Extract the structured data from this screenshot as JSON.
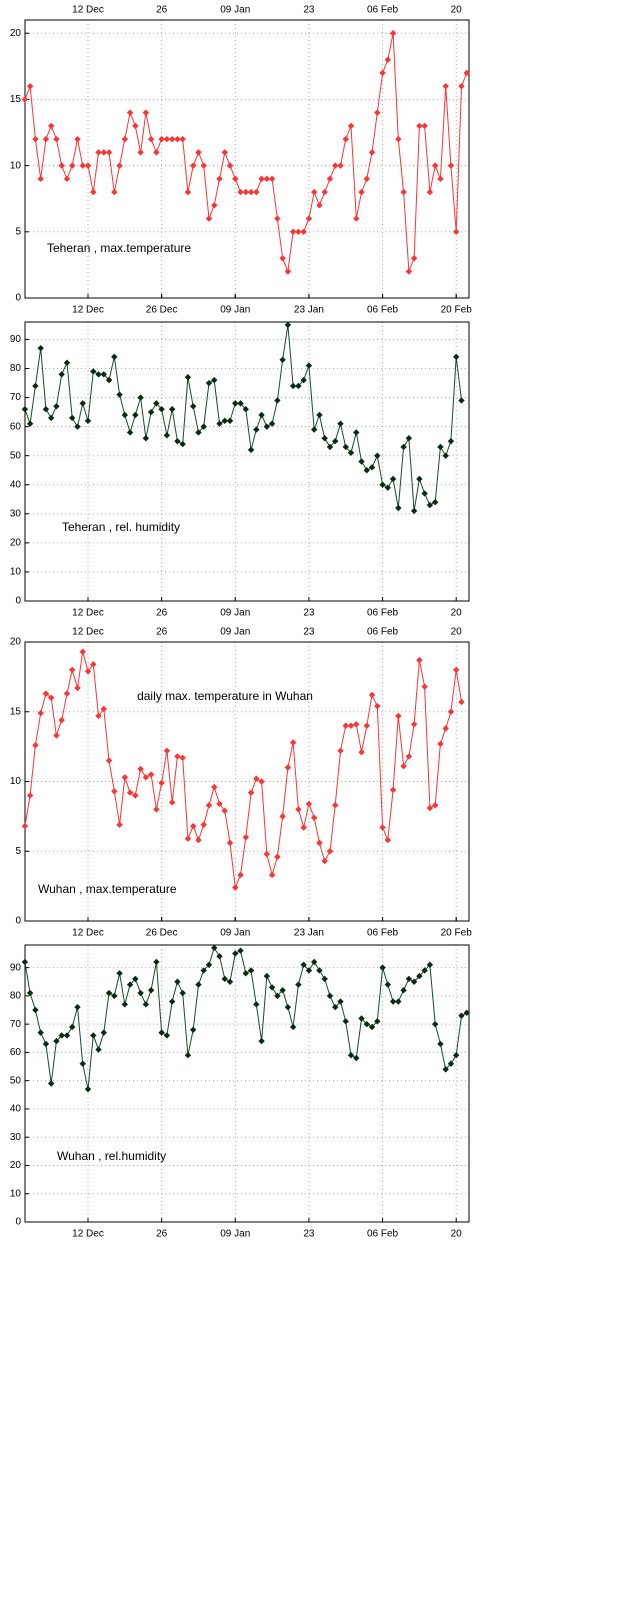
{
  "chart_data": [
    {
      "type": "line",
      "annotation": "Teheran , max.temperature",
      "x": [
        "30 Nov",
        "01 Dec",
        "02 Dec",
        "03 Dec",
        "04 Dec",
        "05 Dec",
        "06 Dec",
        "07 Dec",
        "08 Dec",
        "09 Dec",
        "10 Dec",
        "11 Dec",
        "12 Dec",
        "13 Dec",
        "14 Dec",
        "15 Dec",
        "16 Dec",
        "17 Dec",
        "18 Dec",
        "19 Dec",
        "20 Dec",
        "21 Dec",
        "22 Dec",
        "23 Dec",
        "24 Dec",
        "25 Dec",
        "26 Dec",
        "27 Dec",
        "28 Dec",
        "29 Dec",
        "30 Dec",
        "31 Dec",
        "01 Jan",
        "02 Jan",
        "03 Jan",
        "04 Jan",
        "05 Jan",
        "06 Jan",
        "07 Jan",
        "08 Jan",
        "09 Jan",
        "10 Jan",
        "11 Jan",
        "12 Jan",
        "13 Jan",
        "14 Jan",
        "15 Jan",
        "16 Jan",
        "17 Jan",
        "18 Jan",
        "19 Jan",
        "20 Jan",
        "21 Jan",
        "22 Jan",
        "23 Jan",
        "24 Jan",
        "25 Jan",
        "26 Jan",
        "27 Jan",
        "28 Jan",
        "29 Jan",
        "30 Jan",
        "31 Jan",
        "01 Feb",
        "02 Feb",
        "03 Feb",
        "04 Feb",
        "05 Feb",
        "06 Feb",
        "07 Feb",
        "08 Feb",
        "09 Feb",
        "10 Feb",
        "11 Feb",
        "12 Feb",
        "13 Feb",
        "14 Feb",
        "15 Feb",
        "16 Feb",
        "17 Feb",
        "18 Feb",
        "19 Feb",
        "20 Feb",
        "21 Feb",
        "22 Feb"
      ],
      "series": [
        {
          "color": "#ff3333",
          "marker_color": "#ff3333",
          "values": [
            15,
            16,
            12,
            9,
            12,
            13,
            12,
            10,
            9,
            10,
            12,
            10,
            10,
            8,
            11,
            11,
            11,
            8,
            10,
            12,
            14,
            13,
            11,
            14,
            12,
            11,
            12,
            12,
            12,
            12,
            12,
            8,
            10,
            11,
            10,
            6,
            7,
            9,
            11,
            10,
            9,
            8,
            8,
            8,
            8,
            9,
            9,
            9,
            6,
            3,
            2,
            5,
            5,
            5,
            6,
            8,
            7,
            8,
            9,
            10,
            10,
            12,
            13,
            6,
            8,
            9,
            11,
            14,
            17,
            18,
            20,
            12,
            8,
            2,
            3,
            13,
            13,
            8,
            10,
            9,
            16,
            10,
            5,
            16,
            17
          ]
        }
      ],
      "ylim": [
        0,
        21
      ],
      "yticks": [
        0,
        5,
        10,
        15,
        20
      ],
      "grid": true,
      "xticks": [
        "12 Dec",
        "26 Dec",
        "09 Jan",
        "23 Jan",
        "06 Feb",
        "20 Feb"
      ],
      "x2ticks": [
        "12 Dec",
        {
          "value": "26 Dec",
          "label": "26"
        },
        "09 Jan",
        {
          "value": "23 Jan",
          "label": "23"
        },
        "06 Feb",
        {
          "value": "20 Feb",
          "label": "20"
        }
      ]
    },
    {
      "type": "line",
      "annotation": "Teheran , rel. humidity",
      "x": [
        "30 Nov",
        "01 Dec",
        "02 Dec",
        "03 Dec",
        "04 Dec",
        "05 Dec",
        "06 Dec",
        "07 Dec",
        "08 Dec",
        "09 Dec",
        "10 Dec",
        "11 Dec",
        "12 Dec",
        "13 Dec",
        "14 Dec",
        "15 Dec",
        "16 Dec",
        "17 Dec",
        "18 Dec",
        "19 Dec",
        "20 Dec",
        "21 Dec",
        "22 Dec",
        "23 Dec",
        "24 Dec",
        "25 Dec",
        "26 Dec",
        "27 Dec",
        "28 Dec",
        "29 Dec",
        "30 Dec",
        "31 Dec",
        "01 Jan",
        "02 Jan",
        "03 Jan",
        "04 Jan",
        "05 Jan",
        "06 Jan",
        "07 Jan",
        "08 Jan",
        "09 Jan",
        "10 Jan",
        "11 Jan",
        "12 Jan",
        "13 Jan",
        "14 Jan",
        "15 Jan",
        "16 Jan",
        "17 Jan",
        "18 Jan",
        "19 Jan",
        "20 Jan",
        "21 Jan",
        "22 Jan",
        "23 Jan",
        "24 Jan",
        "25 Jan",
        "26 Jan",
        "27 Jan",
        "28 Jan",
        "29 Jan",
        "30 Jan",
        "31 Jan",
        "01 Feb",
        "02 Feb",
        "03 Feb",
        "04 Feb",
        "05 Feb",
        "06 Feb",
        "07 Feb",
        "08 Feb",
        "09 Feb",
        "10 Feb",
        "11 Feb",
        "12 Feb",
        "13 Feb",
        "14 Feb",
        "15 Feb",
        "16 Feb",
        "17 Feb",
        "18 Feb",
        "19 Feb",
        "20 Feb",
        "21 Feb"
      ],
      "series": [
        {
          "color": "#1a4a2a",
          "marker_color": "#0a2a14",
          "values": [
            66,
            61,
            74,
            87,
            66,
            63,
            67,
            78,
            82,
            63,
            60,
            68,
            62,
            79,
            78,
            78,
            76,
            84,
            71,
            64,
            58,
            64,
            70,
            56,
            65,
            68,
            66,
            57,
            66,
            55,
            54,
            77,
            67,
            58,
            60,
            75,
            76,
            61,
            62,
            62,
            68,
            68,
            66,
            52,
            59,
            64,
            60,
            61,
            69,
            83,
            95,
            74,
            74,
            76,
            81,
            59,
            64,
            56,
            53,
            55,
            61,
            53,
            51,
            58,
            48,
            45,
            46,
            50,
            40,
            39,
            42,
            32,
            53,
            56,
            31,
            42,
            37,
            33,
            34,
            53,
            50,
            55,
            84,
            69
          ]
        }
      ],
      "ylim": [
        0,
        96
      ],
      "yticks": [
        0,
        10,
        20,
        30,
        40,
        50,
        60,
        70,
        80,
        90
      ],
      "grid": true,
      "xticks": [
        "12 Dec",
        {
          "value": "26 Dec",
          "label": "26"
        },
        "09 Jan",
        {
          "value": "23 Jan",
          "label": "23"
        },
        "06 Feb",
        {
          "value": "20 Feb",
          "label": "20"
        }
      ]
    },
    {
      "type": "line",
      "title": "daily max. temperature in Wuhan",
      "annotation": "Wuhan , max.temperature",
      "x": [
        "30 Nov",
        "01 Dec",
        "02 Dec",
        "03 Dec",
        "04 Dec",
        "05 Dec",
        "06 Dec",
        "07 Dec",
        "08 Dec",
        "09 Dec",
        "10 Dec",
        "11 Dec",
        "12 Dec",
        "13 Dec",
        "14 Dec",
        "15 Dec",
        "16 Dec",
        "17 Dec",
        "18 Dec",
        "19 Dec",
        "20 Dec",
        "21 Dec",
        "22 Dec",
        "23 Dec",
        "24 Dec",
        "25 Dec",
        "26 Dec",
        "27 Dec",
        "28 Dec",
        "29 Dec",
        "30 Dec",
        "31 Dec",
        "01 Jan",
        "02 Jan",
        "03 Jan",
        "04 Jan",
        "05 Jan",
        "06 Jan",
        "07 Jan",
        "08 Jan",
        "09 Jan",
        "10 Jan",
        "11 Jan",
        "12 Jan",
        "13 Jan",
        "14 Jan",
        "15 Jan",
        "16 Jan",
        "17 Jan",
        "18 Jan",
        "19 Jan",
        "20 Jan",
        "21 Jan",
        "22 Jan",
        "23 Jan",
        "24 Jan",
        "25 Jan",
        "26 Jan",
        "27 Jan",
        "28 Jan",
        "29 Jan",
        "30 Jan",
        "31 Jan",
        "01 Feb",
        "02 Feb",
        "03 Feb",
        "04 Feb",
        "05 Feb",
        "06 Feb",
        "07 Feb",
        "08 Feb",
        "09 Feb",
        "10 Feb",
        "11 Feb",
        "12 Feb",
        "13 Feb",
        "14 Feb",
        "15 Feb",
        "16 Feb",
        "17 Feb",
        "18 Feb",
        "19 Feb",
        "20 Feb",
        "21 Feb"
      ],
      "series": [
        {
          "color": "#ff3333",
          "marker_color": "#ff3333",
          "values": [
            6.8,
            9,
            12.6,
            14.9,
            16.3,
            16,
            13.3,
            14.4,
            16.3,
            18,
            16.7,
            19.3,
            17.9,
            18.4,
            14.7,
            15.2,
            11.5,
            9.3,
            6.9,
            10.3,
            9.2,
            9,
            10.9,
            10.3,
            10.5,
            8,
            9.9,
            12.2,
            8.5,
            11.8,
            11.7,
            5.9,
            6.8,
            5.8,
            6.9,
            8.3,
            9.6,
            8.4,
            7.9,
            5.6,
            2.4,
            3.3,
            6,
            9.2,
            10.2,
            10,
            4.8,
            3.3,
            4.6,
            7.5,
            11,
            12.8,
            8,
            6.7,
            8.4,
            7.4,
            5.6,
            4.3,
            5,
            8.3,
            12.2,
            14,
            14,
            14.1,
            12.1,
            14,
            16.2,
            15.4,
            6.7,
            5.8,
            9.4,
            14.7,
            11.1,
            11.8,
            14.1,
            18.7,
            16.8,
            8.1,
            8.3,
            12.7,
            13.8,
            15,
            18,
            15.7
          ]
        }
      ],
      "ylim": [
        0,
        20
      ],
      "yticks": [
        0,
        5,
        10,
        15,
        20
      ],
      "grid": true,
      "xticks": [
        "12 Dec",
        "26 Dec",
        "09 Jan",
        "23 Jan",
        "06 Feb",
        "20 Feb"
      ],
      "x2ticks": [
        "12 Dec",
        {
          "value": "26 Dec",
          "label": "26"
        },
        "09 Jan",
        {
          "value": "23 Jan",
          "label": "23"
        },
        "06 Feb",
        {
          "value": "20 Feb",
          "label": "20"
        }
      ]
    },
    {
      "type": "line",
      "annotation": "Wuhan , rel.humidity",
      "x": [
        "30 Nov",
        "01 Dec",
        "02 Dec",
        "03 Dec",
        "04 Dec",
        "05 Dec",
        "06 Dec",
        "07 Dec",
        "08 Dec",
        "09 Dec",
        "10 Dec",
        "11 Dec",
        "12 Dec",
        "13 Dec",
        "14 Dec",
        "15 Dec",
        "16 Dec",
        "17 Dec",
        "18 Dec",
        "19 Dec",
        "20 Dec",
        "21 Dec",
        "22 Dec",
        "23 Dec",
        "24 Dec",
        "25 Dec",
        "26 Dec",
        "27 Dec",
        "28 Dec",
        "29 Dec",
        "30 Dec",
        "31 Dec",
        "01 Jan",
        "02 Jan",
        "03 Jan",
        "04 Jan",
        "05 Jan",
        "06 Jan",
        "07 Jan",
        "08 Jan",
        "09 Jan",
        "10 Jan",
        "11 Jan",
        "12 Jan",
        "13 Jan",
        "14 Jan",
        "15 Jan",
        "16 Jan",
        "17 Jan",
        "18 Jan",
        "19 Jan",
        "20 Jan",
        "21 Jan",
        "22 Jan",
        "23 Jan",
        "24 Jan",
        "25 Jan",
        "26 Jan",
        "27 Jan",
        "28 Jan",
        "29 Jan",
        "30 Jan",
        "31 Jan",
        "01 Feb",
        "02 Feb",
        "03 Feb",
        "04 Feb",
        "05 Feb",
        "06 Feb",
        "07 Feb",
        "08 Feb",
        "09 Feb",
        "10 Feb",
        "11 Feb",
        "12 Feb",
        "13 Feb",
        "14 Feb",
        "15 Feb",
        "16 Feb",
        "17 Feb",
        "18 Feb",
        "19 Feb",
        "20 Feb",
        "21 Feb",
        "22 Feb"
      ],
      "series": [
        {
          "color": "#1a4a2a",
          "marker_color": "#0a2a14",
          "values": [
            92,
            81,
            75,
            67,
            63,
            49,
            64,
            66,
            66,
            69,
            76,
            56,
            47,
            66,
            61,
            67,
            81,
            80,
            88,
            77,
            84,
            86,
            81,
            77,
            82,
            92,
            67,
            66,
            78,
            85,
            81,
            59,
            68,
            84,
            89,
            91,
            97,
            94,
            86,
            85,
            95,
            96,
            88,
            89,
            77,
            64,
            87,
            83,
            80,
            82,
            76,
            69,
            84,
            91,
            89,
            92,
            89,
            86,
            80,
            76,
            78,
            71,
            59,
            58,
            72,
            70,
            69,
            71,
            90,
            84,
            78,
            78,
            82,
            86,
            85,
            87,
            89,
            91,
            70,
            63,
            54,
            56,
            59,
            73,
            74
          ]
        }
      ],
      "ylim": [
        0,
        98
      ],
      "yticks": [
        0,
        10,
        20,
        30,
        40,
        50,
        60,
        70,
        80,
        90
      ],
      "grid": true,
      "xticks": [
        "12 Dec",
        {
          "value": "26 Dec",
          "label": "26"
        },
        "09 Jan",
        {
          "value": "23 Jan",
          "label": "23"
        },
        "06 Feb",
        {
          "value": "20 Feb",
          "label": "20"
        }
      ]
    }
  ]
}
